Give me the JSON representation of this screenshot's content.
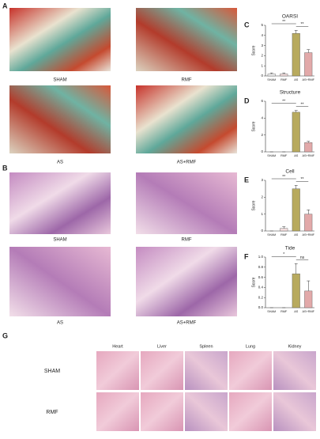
{
  "labels": [
    "A",
    "B",
    "C",
    "D",
    "E",
    "F",
    "G"
  ],
  "panel_a": {
    "captions": [
      "SHAM",
      "RMF",
      "AS",
      "AS+RMF"
    ]
  },
  "panel_b": {
    "captions": [
      "SHAM",
      "RMF",
      "AS",
      "AS+RMF"
    ]
  },
  "panel_g": {
    "columns": [
      "Heart",
      "Liver",
      "Spleen",
      "Lung",
      "Kidney"
    ],
    "rows": [
      "SHAM",
      "RMF"
    ]
  },
  "charts": [
    {
      "type": "bar",
      "title": "OARSI",
      "ylabel": "Score",
      "categories": [
        "SHAM",
        "RMF",
        "AS",
        "AS+RMF"
      ],
      "values": [
        0.2,
        0.2,
        4.2,
        2.3
      ],
      "errors": [
        0.1,
        0.1,
        0.3,
        0.3
      ],
      "colors": [
        "#f2f2f2",
        "#f3dede",
        "#b8aa5e",
        "#e2a9a9"
      ],
      "ylim": [
        0,
        5
      ],
      "yticks": [
        0,
        1,
        2,
        3,
        4,
        5
      ],
      "annotations": [
        "**",
        "**"
      ]
    },
    {
      "type": "bar",
      "title": "Structure",
      "ylabel": "Score",
      "categories": [
        "SHAM",
        "RMF",
        "AS",
        "AS+RMF"
      ],
      "values": [
        0,
        0,
        4.7,
        1.1
      ],
      "errors": [
        0,
        0,
        0.2,
        0.15
      ],
      "colors": [
        "#f2f2f2",
        "#f3dede",
        "#b8aa5e",
        "#e2a9a9"
      ],
      "ylim": [
        0,
        6
      ],
      "yticks": [
        0,
        2,
        4,
        6
      ],
      "annotations": [
        "**",
        "**"
      ]
    },
    {
      "type": "bar",
      "title": "Cell",
      "ylabel": "Score",
      "categories": [
        "SHAM",
        "RMF",
        "AS",
        "AS+RMF"
      ],
      "values": [
        0,
        0.15,
        2.5,
        1.0
      ],
      "errors": [
        0,
        0.1,
        0.2,
        0.25
      ],
      "colors": [
        "#f2f2f2",
        "#f3dede",
        "#b8aa5e",
        "#e2a9a9"
      ],
      "ylim": [
        0,
        3
      ],
      "yticks": [
        0,
        1,
        2,
        3
      ],
      "annotations": [
        "**",
        "**"
      ]
    },
    {
      "type": "bar",
      "title": "Tide",
      "ylabel": "Score",
      "categories": [
        "SHAM",
        "RMF",
        "AS",
        "AS+RMF"
      ],
      "values": [
        0,
        0,
        0.67,
        0.33
      ],
      "errors": [
        0,
        0,
        0.2,
        0.2
      ],
      "colors": [
        "#f2f2f2",
        "#f3dede",
        "#b8aa5e",
        "#e2a9a9"
      ],
      "ylim": [
        0,
        1.0
      ],
      "yticks": [
        {
          "value": 0,
          "label": "0.0"
        },
        {
          "value": 0.2,
          "label": "0.2"
        },
        {
          "value": 0.4,
          "label": "0.4"
        },
        {
          "value": 0.6,
          "label": "0.6"
        },
        {
          "value": 0.8,
          "label": "0.8"
        },
        {
          "value": 1.0,
          "label": "1.0"
        }
      ],
      "annotations": [
        "*",
        "ns"
      ]
    }
  ]
}
